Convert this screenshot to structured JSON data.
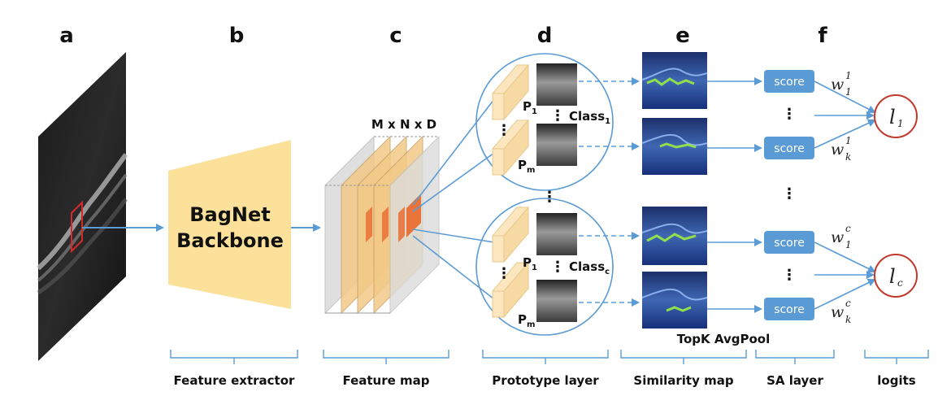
{
  "panels": {
    "a": "a",
    "b": "b",
    "c": "c",
    "d": "d",
    "e": "e",
    "f": "f"
  },
  "backbone": {
    "line1": "BagNet",
    "line2": "Backbone"
  },
  "feature_map_dims": "M x N x D",
  "prototypes": {
    "class_1": {
      "base": "Class",
      "sub": "1",
      "p_top": "P",
      "p_top_sub": "1",
      "p_bot": "P",
      "p_bot_sub": "m"
    },
    "class_c": {
      "base": "Class",
      "sub": "c",
      "p_top": "P",
      "p_top_sub": "1",
      "p_bot": "P",
      "p_bot_sub": "m"
    }
  },
  "score_label": "score",
  "topk_label": "TopK AvgPool",
  "weights": {
    "w11": {
      "base": "w",
      "sup": "1",
      "sub": "1"
    },
    "w1k": {
      "base": "w",
      "sup": "1",
      "sub": "k"
    },
    "wc1": {
      "base": "w",
      "sup": "c",
      "sub": "1"
    },
    "wck": {
      "base": "w",
      "sup": "c",
      "sub": "k"
    }
  },
  "logits": {
    "l1": {
      "base": "l",
      "sub": "1"
    },
    "lc": {
      "base": "l",
      "sub": "c"
    }
  },
  "bottom_labels": {
    "feature_extractor": "Feature extractor",
    "feature_map": "Feature map",
    "prototype_layer": "Prototype layer",
    "similarity_map": "Similarity map",
    "sa_layer": "SA layer",
    "logits": "logits"
  },
  "colors": {
    "arrow": "#5b9bd5",
    "backbone_fill": "#fbe19a",
    "score_fill": "#5b9bd5",
    "logit_ring": "#c0392b",
    "patch_fill": "#fbe6bf",
    "feature_slice": "#f2c987",
    "highlight": "#e8743b"
  }
}
